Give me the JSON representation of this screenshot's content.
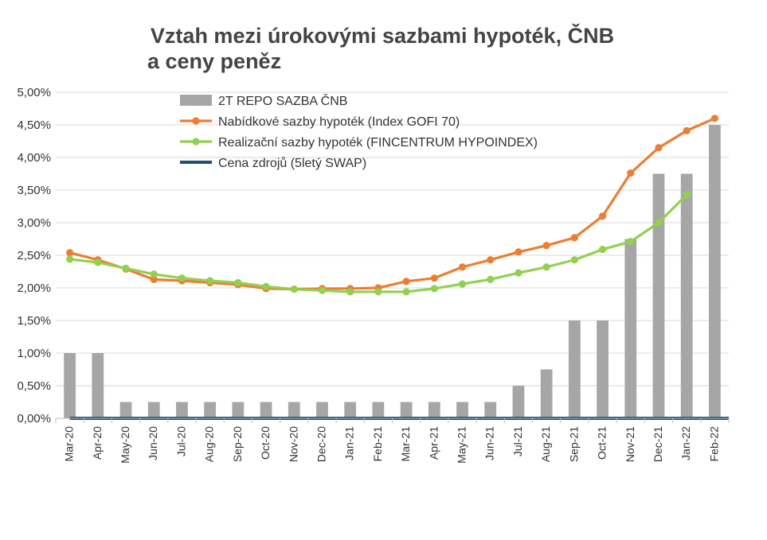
{
  "chart_data": {
    "type": "bar",
    "title_line1": "Vztah mezi úrokovými sazbami hypoték, ČNB",
    "title_line2": "a ceny peněz",
    "categories": [
      "Mar-20",
      "Apr-20",
      "May-20",
      "Jun-20",
      "Jul-20",
      "Aug-20",
      "Sep-20",
      "Oct-20",
      "Nov-20",
      "Dec-20",
      "Jan-21",
      "Feb-21",
      "Mar-21",
      "Apr-21",
      "May-21",
      "Jun-21",
      "Jul-21",
      "Aug-21",
      "Sep-21",
      "Oct-21",
      "Nov-21",
      "Dec-21",
      "Jan-22",
      "Feb-22"
    ],
    "ylim": [
      0,
      5
    ],
    "yticks": [
      0,
      0.5,
      1,
      1.5,
      2,
      2.5,
      3,
      3.5,
      4,
      4.5,
      5
    ],
    "ytick_labels": [
      "0,00%",
      "0,50%",
      "1,00%",
      "1,50%",
      "2,00%",
      "2,50%",
      "3,00%",
      "3,50%",
      "4,00%",
      "4,50%",
      "5,00%"
    ],
    "grid": true,
    "legend_position": "top-center",
    "series": [
      {
        "name": "2T REPO SAZBA ČNB",
        "kind": "bar",
        "color": "#a6a6a6",
        "values": [
          1.0,
          1.0,
          0.25,
          0.25,
          0.25,
          0.25,
          0.25,
          0.25,
          0.25,
          0.25,
          0.25,
          0.25,
          0.25,
          0.25,
          0.25,
          0.25,
          0.5,
          0.75,
          1.5,
          1.5,
          2.75,
          3.75,
          3.75,
          4.5
        ]
      },
      {
        "name": "Nabídkové sazby hypoték (Index GOFI 70)",
        "kind": "line",
        "color": "#ed7d31",
        "values": [
          2.54,
          2.43,
          2.29,
          2.13,
          2.11,
          2.08,
          2.05,
          1.99,
          1.98,
          1.99,
          1.99,
          2.0,
          2.1,
          2.15,
          2.32,
          2.43,
          2.55,
          2.65,
          2.77,
          3.1,
          3.76,
          4.15,
          4.41,
          4.6
        ]
      },
      {
        "name": "Realizační sazby hypoték (FINCENTRUM HYPOINDEX)",
        "kind": "line",
        "color": "#92d050",
        "values": [
          2.44,
          2.39,
          2.3,
          2.21,
          2.15,
          2.11,
          2.08,
          2.02,
          1.98,
          1.96,
          1.94,
          1.94,
          1.94,
          1.99,
          2.06,
          2.13,
          2.23,
          2.32,
          2.43,
          2.59,
          2.71,
          3.0,
          3.43,
          null
        ]
      },
      {
        "name": "Cena zdrojů (5letý SWAP)",
        "kind": "line",
        "color": "#1f4e79",
        "values": [
          0,
          0,
          0,
          0,
          0,
          0,
          0,
          0,
          0,
          0,
          0,
          0,
          0,
          0,
          0,
          0,
          0,
          0,
          0,
          0,
          0,
          0,
          0,
          0
        ]
      }
    ]
  }
}
